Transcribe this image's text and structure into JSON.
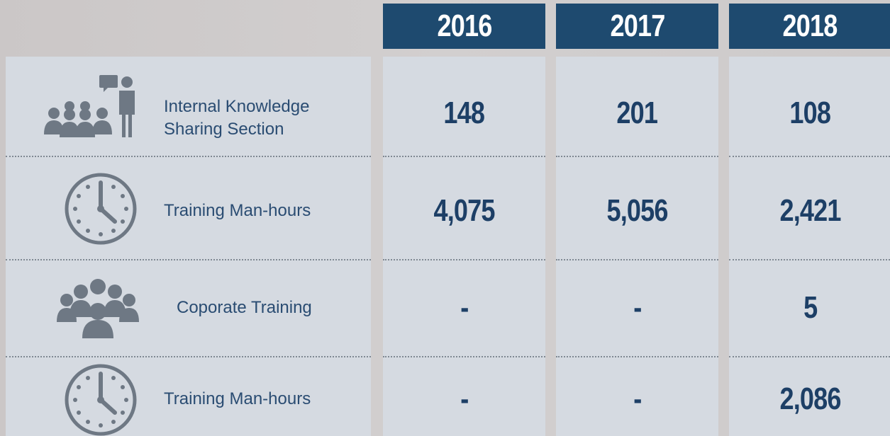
{
  "table": {
    "columns": [
      "2016",
      "2017",
      "2018"
    ],
    "rows": [
      {
        "label": "Internal Knowledge Sharing Section",
        "values": [
          "148",
          "201",
          "108"
        ]
      },
      {
        "label": "Training Man-hours",
        "values": [
          "4,075",
          "5,056",
          "2,421"
        ]
      },
      {
        "label": "Coporate Training",
        "values": [
          "-",
          "-",
          "5"
        ]
      },
      {
        "label": "Training Man-hours",
        "values": [
          "-",
          "-",
          "2,086"
        ]
      }
    ]
  }
}
